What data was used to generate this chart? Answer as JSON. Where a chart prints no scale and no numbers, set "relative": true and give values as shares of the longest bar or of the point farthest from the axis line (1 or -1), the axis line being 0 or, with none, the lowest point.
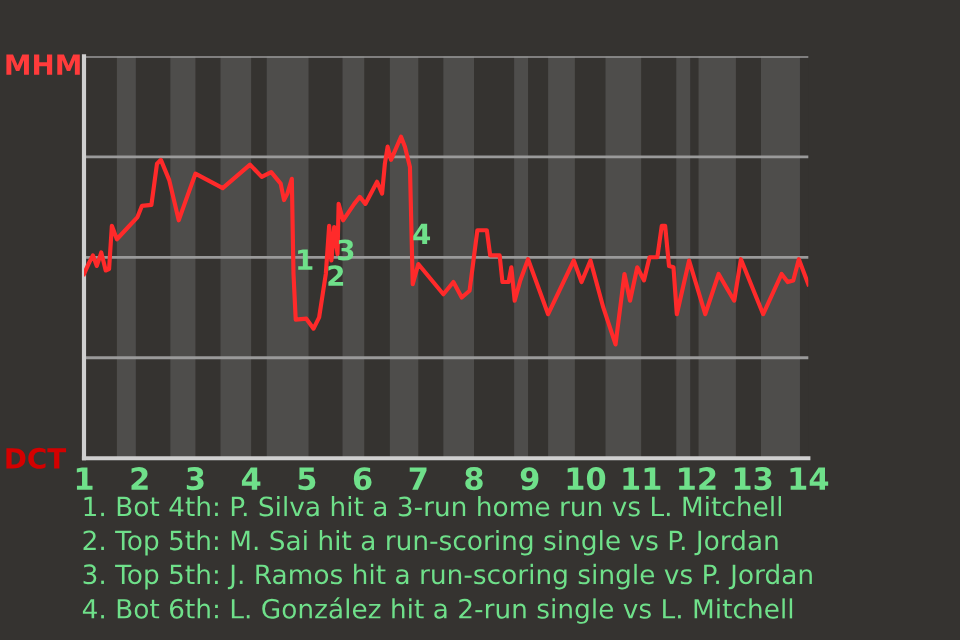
{
  "chart_data": {
    "type": "line",
    "relative": true,
    "x": [
      1.0,
      1.08,
      1.16,
      1.23,
      1.31,
      1.39,
      1.45,
      1.5,
      1.59,
      1.74,
      1.96,
      2.04,
      2.21,
      2.31,
      2.38,
      2.53,
      2.7,
      2.85,
      3.0,
      3.49,
      3.98,
      4.19,
      4.36,
      4.53,
      4.59,
      4.65,
      4.73,
      4.76,
      4.8,
      4.99,
      5.12,
      5.22,
      5.34,
      5.4,
      5.44,
      5.49,
      5.55,
      5.57,
      5.65,
      5.85,
      5.95,
      6.05,
      6.26,
      6.35,
      6.4,
      6.45,
      6.51,
      6.69,
      6.76,
      6.85,
      6.9,
      7.0,
      7.45,
      7.63,
      7.78,
      7.92,
      8.06,
      8.23,
      8.29,
      8.46,
      8.51,
      8.62,
      8.67,
      8.73,
      8.83,
      8.97,
      9.33,
      9.79,
      9.93,
      10.09,
      10.32,
      10.54,
      10.7,
      10.8,
      10.93,
      11.05,
      11.15,
      11.29,
      11.37,
      11.43,
      11.5,
      11.58,
      11.64,
      11.86,
      12.15,
      12.39,
      12.53,
      12.67,
      12.79,
      13.19,
      13.52,
      13.63,
      13.73,
      13.83,
      14.0
    ],
    "series": [
      {
        "color": "#ff2a2a",
        "values": [
          0.573,
          0.604,
          0.631,
          0.598,
          0.64,
          0.584,
          0.588,
          0.723,
          0.681,
          0.709,
          0.75,
          0.785,
          0.788,
          0.916,
          0.928,
          0.865,
          0.74,
          0.813,
          0.885,
          0.84,
          0.913,
          0.875,
          0.89,
          0.854,
          0.803,
          0.823,
          0.869,
          0.573,
          0.431,
          0.434,
          0.403,
          0.438,
          0.573,
          0.723,
          0.615,
          0.719,
          0.635,
          0.791,
          0.74,
          0.791,
          0.813,
          0.791,
          0.86,
          0.823,
          0.916,
          0.969,
          0.928,
          1,
          0.969,
          0.906,
          0.541,
          0.604,
          0.51,
          0.548,
          0.5,
          0.521,
          0.709,
          0.709,
          0.631,
          0.631,
          0.548,
          0.548,
          0.594,
          0.49,
          0.553,
          0.619,
          0.448,
          0.615,
          0.548,
          0.615,
          0.469,
          0.354,
          0.573,
          0.49,
          0.594,
          0.553,
          0.625,
          0.625,
          0.723,
          0.723,
          0.598,
          0.594,
          0.448,
          0.615,
          0.448,
          0.573,
          0.531,
          0.49,
          0.619,
          0.448,
          0.573,
          0.548,
          0.553,
          0.619,
          0.541
        ]
      }
    ],
    "xlim": [
      1,
      14
    ],
    "xticks": [
      1,
      2,
      3,
      4,
      5,
      6,
      7,
      8,
      9,
      10,
      11,
      12,
      13,
      14
    ],
    "tick_labels": "x",
    "grid": "y",
    "marker": "none",
    "line_style": "solid",
    "bands": [
      {
        "axis": "x",
        "from": 1.59,
        "to": 1.93,
        "color": "#4e4d4b"
      },
      {
        "axis": "x",
        "from": 2.55,
        "to": 3.0,
        "color": "#4e4d4b"
      },
      {
        "axis": "x",
        "from": 3.45,
        "to": 4.0,
        "color": "#4e4d4b"
      },
      {
        "axis": "x",
        "from": 4.28,
        "to": 5.03,
        "color": "#4e4d4b"
      },
      {
        "axis": "x",
        "from": 5.64,
        "to": 6.03,
        "color": "#4e4d4b"
      },
      {
        "axis": "x",
        "from": 6.49,
        "to": 7.0,
        "color": "#4e4d4b"
      },
      {
        "axis": "x",
        "from": 7.45,
        "to": 8.0,
        "color": "#4e4d4b"
      },
      {
        "axis": "x",
        "from": 8.72,
        "to": 8.97,
        "color": "#4e4d4b"
      },
      {
        "axis": "x",
        "from": 9.33,
        "to": 9.81,
        "color": "#4e4d4b"
      },
      {
        "axis": "x",
        "from": 10.36,
        "to": 11.0,
        "color": "#4e4d4b"
      },
      {
        "axis": "x",
        "from": 11.63,
        "to": 11.88,
        "color": "#4e4d4b"
      },
      {
        "axis": "x",
        "from": 12.03,
        "to": 12.7,
        "color": "#4e4d4b"
      },
      {
        "axis": "x",
        "from": 13.15,
        "to": 13.85,
        "color": "#4e4d4b"
      }
    ],
    "annotations": [
      "MHM",
      "DCT",
      {
        "text": "1",
        "x": 4.96,
        "y": 0.61
      },
      {
        "text": "2",
        "x": 5.52,
        "y": 0.56
      },
      {
        "text": "3",
        "x": 5.7,
        "y": 0.64
      },
      {
        "text": "4",
        "x": 7.06,
        "y": 0.69
      },
      "1. Bot 4th: P. Silva hit a 3-run home run vs L. Mitchell",
      "2. Top 5th: M. Sai hit a run-scoring single vs P. Jordan",
      "3. Top 5th: J. Ramos hit a run-scoring single vs P. Jordan",
      "4. Bot 6th: L. González hit a 2-run single vs L. Mitchell"
    ]
  }
}
